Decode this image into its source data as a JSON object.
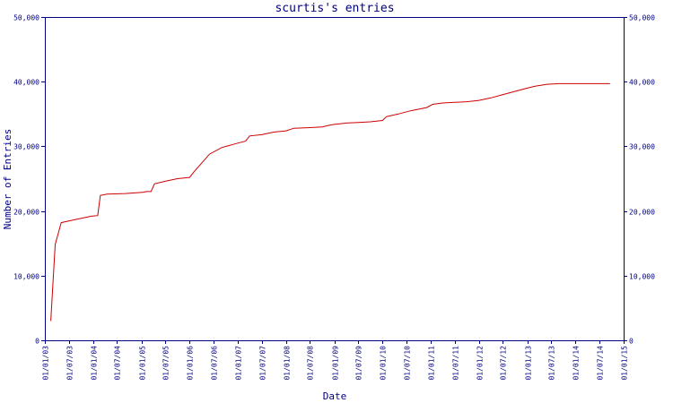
{
  "chart_data": {
    "type": "line",
    "title": "scurtis's entries",
    "xlabel": "Date",
    "ylabel": "Number of Entries",
    "ylim": [
      0,
      50000
    ],
    "y_ticks": [
      0,
      10000,
      20000,
      30000,
      40000,
      50000
    ],
    "y_tick_labels": [
      "0",
      "10,000",
      "20,000",
      "30,000",
      "40,000",
      "50,000"
    ],
    "x_ticks": [
      "2003-01-01",
      "2003-07-01",
      "2004-01-01",
      "2004-07-01",
      "2005-01-01",
      "2005-07-01",
      "2006-01-01",
      "2006-07-01",
      "2007-01-01",
      "2007-07-01",
      "2008-01-01",
      "2008-07-01",
      "2009-01-01",
      "2009-07-01",
      "2010-01-01",
      "2010-07-01",
      "2011-01-01",
      "2011-07-01",
      "2012-01-01",
      "2012-07-01",
      "2013-01-01",
      "2013-07-01",
      "2014-01-01",
      "2014-07-01",
      "2015-01-01"
    ],
    "x_tick_labels": [
      "01/01/03",
      "01/07/03",
      "01/01/04",
      "01/07/04",
      "01/01/05",
      "01/07/05",
      "01/01/06",
      "01/07/06",
      "01/01/07",
      "01/07/07",
      "01/01/08",
      "01/07/08",
      "01/01/09",
      "01/07/09",
      "01/01/10",
      "01/07/10",
      "01/01/11",
      "01/07/11",
      "01/01/12",
      "01/07/12",
      "01/01/13",
      "01/07/13",
      "01/01/14",
      "01/07/14",
      "01/01/15"
    ],
    "xlim": [
      "2003-01-01",
      "2015-01-01"
    ],
    "grid": false,
    "colors": {
      "axis": "#000080",
      "line": "#cc0000"
    },
    "series": [
      {
        "x": [
          "2003-02-15",
          "2003-03-20",
          "2003-05-05",
          "2003-08-01",
          "2003-12-20",
          "2004-02-05",
          "2004-02-25",
          "2004-04-15",
          "2004-09-01",
          "2005-01-10",
          "2005-02-10",
          "2005-03-15",
          "2005-04-10",
          "2005-07-01",
          "2005-10-01",
          "2006-01-01",
          "2006-02-01",
          "2006-06-01",
          "2006-09-01",
          "2007-01-01",
          "2007-03-01",
          "2007-04-01",
          "2007-07-01",
          "2007-10-01",
          "2008-01-01",
          "2008-03-01",
          "2008-07-01",
          "2008-10-01",
          "2008-12-01",
          "2009-01-01",
          "2009-04-01",
          "2009-07-01",
          "2009-10-01",
          "2010-01-01",
          "2010-02-01",
          "2010-05-01",
          "2010-08-01",
          "2010-12-01",
          "2011-01-15",
          "2011-04-01",
          "2011-07-01",
          "2011-10-01",
          "2012-01-01",
          "2012-04-01",
          "2012-07-01",
          "2012-10-01",
          "2013-01-01",
          "2013-03-01",
          "2013-06-01",
          "2013-09-01",
          "2014-01-01",
          "2014-04-01",
          "2014-07-01",
          "2014-09-20"
        ],
        "values": [
          3000,
          14800,
          18200,
          18600,
          19200,
          19300,
          22400,
          22600,
          22700,
          22900,
          23000,
          23000,
          24200,
          24600,
          25000,
          25200,
          26000,
          28800,
          29800,
          30500,
          30800,
          31600,
          31800,
          32200,
          32400,
          32800,
          32900,
          33000,
          33300,
          33400,
          33600,
          33700,
          33800,
          34000,
          34600,
          35000,
          35500,
          36000,
          36500,
          36700,
          36800,
          36900,
          37100,
          37500,
          38000,
          38500,
          39000,
          39300,
          39600,
          39700,
          39700,
          39700,
          39700,
          39700
        ]
      }
    ]
  }
}
